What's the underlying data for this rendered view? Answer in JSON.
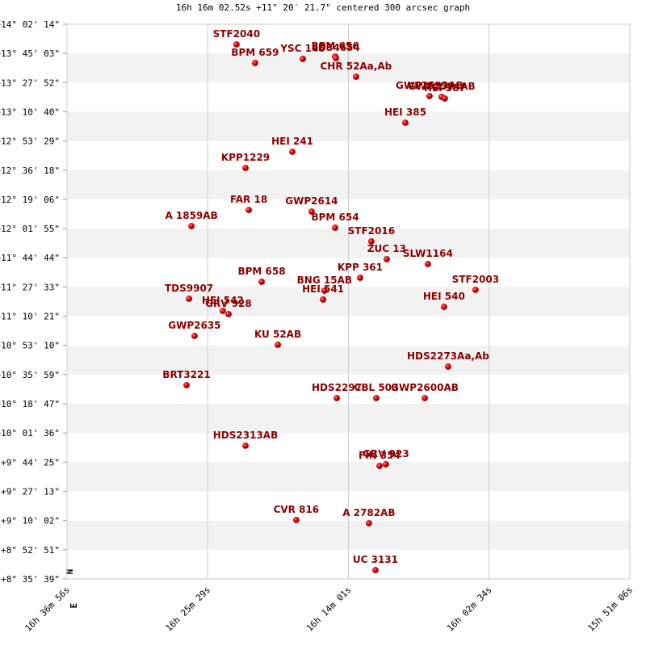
{
  "chart_data": {
    "type": "scatter",
    "title": "16h 16m 02.52s +11° 20′ 21.7\" centered 300 arcsec graph",
    "north_label": "N",
    "east_label": "E",
    "color": "#cc0000",
    "label_color": "#8b0000",
    "grid": true,
    "xlim": [
      59816,
      57066
    ],
    "xticks": [
      {
        "value": 59816,
        "label": "16h 36m 56s"
      },
      {
        "value": 59129,
        "label": "16h 25m 29s"
      },
      {
        "value": 58441,
        "label": "16h 14m 01s"
      },
      {
        "value": 57754,
        "label": "16h 02m 34s"
      },
      {
        "value": 57066,
        "label": "15h 51m 06s"
      }
    ],
    "ylim": [
      30939,
      50534
    ],
    "yticks": [
      {
        "value": 50534,
        "label": "+14° 02' 14\""
      },
      {
        "value": 49503,
        "label": "+13° 45' 03\""
      },
      {
        "value": 48472,
        "label": "+13° 27' 52\""
      },
      {
        "value": 47440,
        "label": "+13° 10' 40\""
      },
      {
        "value": 46409,
        "label": "+12° 53' 29\""
      },
      {
        "value": 45378,
        "label": "+12° 36' 18\""
      },
      {
        "value": 44346,
        "label": "+12° 19' 06\""
      },
      {
        "value": 43315,
        "label": "+12° 01' 55\""
      },
      {
        "value": 42284,
        "label": "+11° 44' 44\""
      },
      {
        "value": 41253,
        "label": "+11° 27' 33\""
      },
      {
        "value": 40221,
        "label": "+11° 10' 21\""
      },
      {
        "value": 39190,
        "label": "+10° 53' 10\""
      },
      {
        "value": 38159,
        "label": "+10° 35' 59\""
      },
      {
        "value": 37127,
        "label": "+10° 18' 47\""
      },
      {
        "value": 36096,
        "label": "+10° 01' 36\""
      },
      {
        "value": 35065,
        "label": "+9° 44' 25\""
      },
      {
        "value": 34033,
        "label": "+9° 27' 13\""
      },
      {
        "value": 33002,
        "label": "+9° 10' 02\""
      },
      {
        "value": 31971,
        "label": "+8° 52' 51\""
      },
      {
        "value": 30939,
        "label": "+8° 35' 39\""
      }
    ],
    "points": [
      {
        "label": "STF2040",
        "x": 58988,
        "y": 49821
      },
      {
        "label": "BPM 659",
        "x": 58897,
        "y": 49165
      },
      {
        "label": "YSC 146",
        "x": 58664,
        "y": 49308
      },
      {
        "label": "BPM 656",
        "x": 58506,
        "y": 49393
      },
      {
        "label": "LDS4654",
        "x": 58502,
        "y": 49336
      },
      {
        "label": "CHR 52Aa,Ab",
        "x": 58404,
        "y": 48680
      },
      {
        "label": "GWP2593AB",
        "x": 58045,
        "y": 47996
      },
      {
        "label": "GWP2594AB",
        "x": 57986,
        "y": 47967
      },
      {
        "label": "HEI 387",
        "x": 57970,
        "y": 47910
      },
      {
        "label": "HEI 385",
        "x": 58163,
        "y": 47055
      },
      {
        "label": "HEI 241",
        "x": 58715,
        "y": 46028
      },
      {
        "label": "KPP1229",
        "x": 58944,
        "y": 45457
      },
      {
        "label": "FAR  18",
        "x": 58928,
        "y": 43974
      },
      {
        "label": "GWP2614",
        "x": 58621,
        "y": 43917
      },
      {
        "label": "BPM 654",
        "x": 58506,
        "y": 43347
      },
      {
        "label": "A  1859AB",
        "x": 59208,
        "y": 43404
      },
      {
        "label": "STF2016",
        "x": 58329,
        "y": 42862
      },
      {
        "label": "ZUC  13",
        "x": 58254,
        "y": 42235
      },
      {
        "label": "SLW1164",
        "x": 58053,
        "y": 42064
      },
      {
        "label": "KPP 361",
        "x": 58384,
        "y": 41579
      },
      {
        "label": "BPM 658",
        "x": 58865,
        "y": 41436
      },
      {
        "label": "BNG  15AB",
        "x": 58558,
        "y": 41122
      },
      {
        "label": "HEI 541",
        "x": 58565,
        "y": 40809
      },
      {
        "label": "STF2003",
        "x": 57820,
        "y": 41151
      },
      {
        "label": "TDS9907",
        "x": 59220,
        "y": 40837
      },
      {
        "label": "HEI 540",
        "x": 57974,
        "y": 40552
      },
      {
        "label": "HEI 542",
        "x": 59055,
        "y": 40409
      },
      {
        "label": "GRV 928",
        "x": 59027,
        "y": 40295
      },
      {
        "label": "GWP2635",
        "x": 59193,
        "y": 39525
      },
      {
        "label": "KU   52AB",
        "x": 58786,
        "y": 39212
      },
      {
        "label": "HDS2273Aa,Ab",
        "x": 57954,
        "y": 38442
      },
      {
        "label": "BRT3221",
        "x": 59232,
        "y": 37786
      },
      {
        "label": "HDS2297",
        "x": 58498,
        "y": 37329
      },
      {
        "label": "CBL 503",
        "x": 58305,
        "y": 37329
      },
      {
        "label": "GWP2600AB",
        "x": 58068,
        "y": 37329
      },
      {
        "label": "HDS2313AB",
        "x": 58944,
        "y": 35647
      },
      {
        "label": "GRV 923",
        "x": 58258,
        "y": 34991
      },
      {
        "label": "FIN 354",
        "x": 58289,
        "y": 34934
      },
      {
        "label": "CVR 816",
        "x": 58696,
        "y": 33023
      },
      {
        "label": "A  2782AB",
        "x": 58341,
        "y": 32909
      },
      {
        "label": "UC 3131",
        "x": 58309,
        "y": 31254
      }
    ]
  }
}
